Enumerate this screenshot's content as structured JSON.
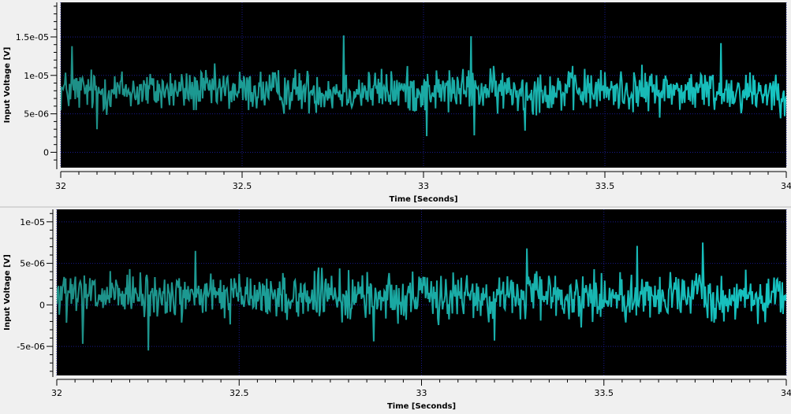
{
  "colors": {
    "background": "#f0f0f0",
    "plot_background": "#000000",
    "grid": "#1a1a8c",
    "signal_left": "#1e8f86",
    "signal_right": "#16c4c2",
    "axis_text": "#000000"
  },
  "chart_data": [
    {
      "type": "line",
      "title": "",
      "xlabel": "Time [Seconds]",
      "ylabel": "Input Voltage [V]",
      "xlim": [
        32,
        34
      ],
      "ylim": [
        -2e-06,
        1.95e-05
      ],
      "xticks": [
        32,
        32.5,
        33,
        33.5,
        34
      ],
      "xtick_labels": [
        "32",
        "32.5",
        "33",
        "33.5",
        "34"
      ],
      "yticks": [
        0,
        5e-06,
        1e-05,
        1.5e-05
      ],
      "ytick_labels": [
        "0",
        "5e-06",
        "1e-05",
        "1.5e-05"
      ],
      "grid": true,
      "series": [
        {
          "mean": 8e-06,
          "noise_amplitude": 2.4e-06,
          "peaks": [
            [
              32.78,
              1.52e-05
            ],
            [
              33.13,
              1.51e-05
            ],
            [
              33.82,
              1.42e-05
            ],
            [
              32.03,
              1.38e-05
            ]
          ],
          "troughs": [
            [
              33.01,
              2.1e-06
            ],
            [
              33.14,
              2.2e-06
            ],
            [
              33.28,
              2.8e-06
            ],
            [
              32.1,
              3e-06
            ]
          ]
        }
      ]
    },
    {
      "type": "line",
      "title": "",
      "xlabel": "Time [Seconds]",
      "ylabel": "Input Voltage [V]",
      "xlim": [
        32,
        34
      ],
      "ylim": [
        -8.5e-06,
        1.15e-05
      ],
      "xticks": [
        32,
        32.5,
        33,
        33.5,
        34
      ],
      "xtick_labels": [
        "32",
        "32.5",
        "33",
        "33.5",
        "34"
      ],
      "yticks": [
        -5e-06,
        0,
        5e-06,
        1e-05
      ],
      "ytick_labels": [
        "-5e-06",
        "0",
        "5e-06",
        "1e-05"
      ],
      "grid": true,
      "series": [
        {
          "mean": 1e-06,
          "noise_amplitude": 2.4e-06,
          "peaks": [
            [
              33.77,
              7.5e-06
            ],
            [
              33.59,
              7.1e-06
            ],
            [
              33.29,
              6.8e-06
            ],
            [
              32.38,
              6.5e-06
            ]
          ],
          "troughs": [
            [
              32.25,
              -5.5e-06
            ],
            [
              32.07,
              -4.7e-06
            ],
            [
              32.87,
              -4.4e-06
            ],
            [
              33.2,
              -4.3e-06
            ]
          ]
        }
      ]
    }
  ]
}
